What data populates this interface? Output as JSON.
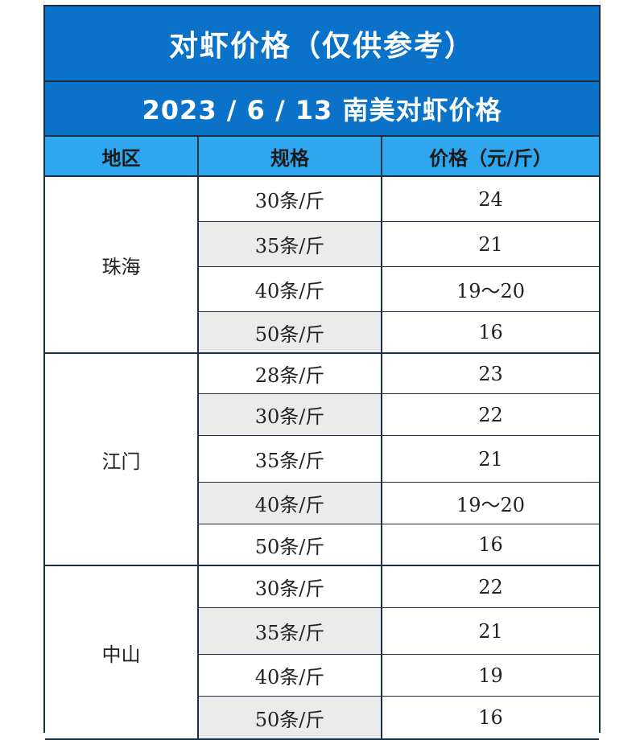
{
  "title": "对虾价格（仅供参考）",
  "subtitle": "2023 / 6 / 13 南美对虾价格",
  "headers": {
    "region": "地区",
    "spec": "规格",
    "price": "价格（元/斤）"
  },
  "groups": [
    {
      "region": "珠海",
      "rows": [
        {
          "spec": "30条/斤",
          "price": "24"
        },
        {
          "spec": "35条/斤",
          "price": "21"
        },
        {
          "spec": "40条/斤",
          "price": "19～20"
        },
        {
          "spec": "50条/斤",
          "price": "16"
        }
      ]
    },
    {
      "region": "江门",
      "rows": [
        {
          "spec": "28条/斤",
          "price": "23"
        },
        {
          "spec": "30条/斤",
          "price": "22"
        },
        {
          "spec": "35条/斤",
          "price": "21"
        },
        {
          "spec": "40条/斤",
          "price": "19～20"
        },
        {
          "spec": "50条/斤",
          "price": "16"
        }
      ]
    },
    {
      "region": "中山",
      "rows": [
        {
          "spec": "30条/斤",
          "price": "22"
        },
        {
          "spec": "35条/斤",
          "price": "21"
        },
        {
          "spec": "40条/斤",
          "price": "19"
        },
        {
          "spec": "50条/斤",
          "price": "16"
        }
      ]
    }
  ],
  "colors": {
    "title_bg": "#0a73c9",
    "header_bg": "#2fa7ee",
    "shade_bg": "#ebebeb",
    "border": "#1d2f44"
  }
}
